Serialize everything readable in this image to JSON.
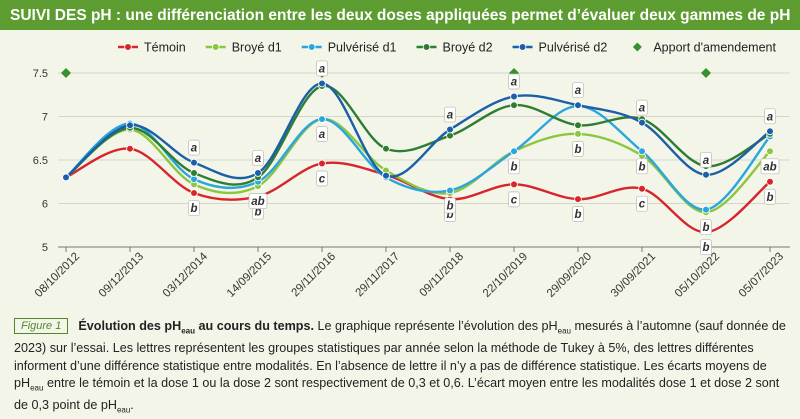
{
  "chart_data": {
    "type": "line",
    "title": "SUIVI DES pH : une différenciation entre les deux doses appliquées permet d’évaluer deux gammes de pH",
    "categories": [
      "08/10/2012",
      "09/12/2013",
      "03/12/2014",
      "14/09/2015",
      "29/11/2016",
      "29/11/2017",
      "09/11/2018",
      "22/10/2019",
      "29/09/2020",
      "30/09/2021",
      "05/10/2022",
      "05/07/2023"
    ],
    "series": [
      {
        "name": "Témoin",
        "color": "#d7262b",
        "values": [
          6.3,
          6.63,
          6.12,
          6.08,
          6.46,
          6.33,
          6.05,
          6.22,
          6.05,
          6.17,
          5.67,
          6.25
        ],
        "letters": [
          null,
          null,
          "b",
          "b",
          "c",
          null,
          "b",
          "c",
          "b",
          "c",
          "b",
          "b"
        ]
      },
      {
        "name": "Broyé d1",
        "color": "#8cc63f",
        "values": [
          6.3,
          6.85,
          6.22,
          6.2,
          6.97,
          6.38,
          6.12,
          6.6,
          6.8,
          6.55,
          5.9,
          6.6
        ],
        "letters": [
          null,
          null,
          null,
          "ab",
          null,
          null,
          null,
          null,
          "b",
          null,
          "b",
          "ab"
        ]
      },
      {
        "name": "Pulvérisé d1",
        "color": "#2aa6dc",
        "values": [
          6.3,
          6.92,
          6.28,
          6.25,
          6.97,
          6.3,
          6.15,
          6.6,
          7.12,
          6.6,
          5.93,
          6.77
        ],
        "letters": [
          null,
          null,
          null,
          null,
          "a",
          null,
          "b",
          "b",
          null,
          "b",
          null,
          null
        ]
      },
      {
        "name": "Broyé d2",
        "color": "#2f7d32",
        "values": [
          6.3,
          6.87,
          6.35,
          6.3,
          7.35,
          6.63,
          6.78,
          7.13,
          6.9,
          6.97,
          6.43,
          6.8
        ],
        "letters": [
          null,
          null,
          null,
          null,
          null,
          null,
          null,
          null,
          null,
          null,
          null,
          null
        ]
      },
      {
        "name": "Pulvérisé d2",
        "color": "#1b5fa6",
        "values": [
          6.3,
          6.9,
          6.47,
          6.35,
          7.38,
          6.32,
          6.85,
          7.23,
          7.13,
          6.93,
          6.33,
          6.83
        ],
        "letters": [
          null,
          null,
          "a",
          "a",
          "a",
          null,
          "a",
          "a",
          "a",
          "a",
          "a",
          "a"
        ]
      },
      {
        "name": "Apport d'amendement",
        "color": "#3a8f2f",
        "marker": "diamond",
        "line": false,
        "values": [
          7.5,
          null,
          null,
          null,
          7.5,
          null,
          null,
          7.5,
          null,
          null,
          7.5,
          null
        ]
      }
    ],
    "ylim": [
      5.5,
      7.6
    ],
    "yticks": [
      {
        "value": 5.5,
        "label": "5"
      },
      6,
      6.5,
      7,
      7.5
    ],
    "grid": true,
    "legend": "top",
    "caption": {
      "figure": "Figure 1",
      "parts": [
        {
          "text": "Évolution des pH",
          "style": "bold"
        },
        {
          "text": "eau",
          "style": "bold-sub"
        },
        {
          "text": " au cours du temps.",
          "style": "bold"
        },
        {
          "text": " Le graphique représente l’évolution des pH",
          "style": "normal"
        },
        {
          "text": "eau",
          "style": "sub"
        },
        {
          "text": " mesurés à l’automne (sauf donnée de 2023) sur l’essai. Les lettres représentent les groupes statistiques par année selon la méthode de Tukey à 5%, des lettres différentes informent d’une différence statistique entre modalités. En l’absence de lettre il n’y a pas de différence statistique. Les écarts moyens de pH",
          "style": "normal"
        },
        {
          "text": "eau",
          "style": "sub"
        },
        {
          "text": " entre le témoin et la dose 1 ou la dose 2 sont respectivement de 0,3 et 0,6. L’écart moyen entre les modalités dose 1 et dose 2 sont de 0,3 point de pH",
          "style": "normal"
        },
        {
          "text": "eau",
          "style": "sub"
        },
        {
          "text": ".",
          "style": "normal"
        }
      ]
    }
  }
}
